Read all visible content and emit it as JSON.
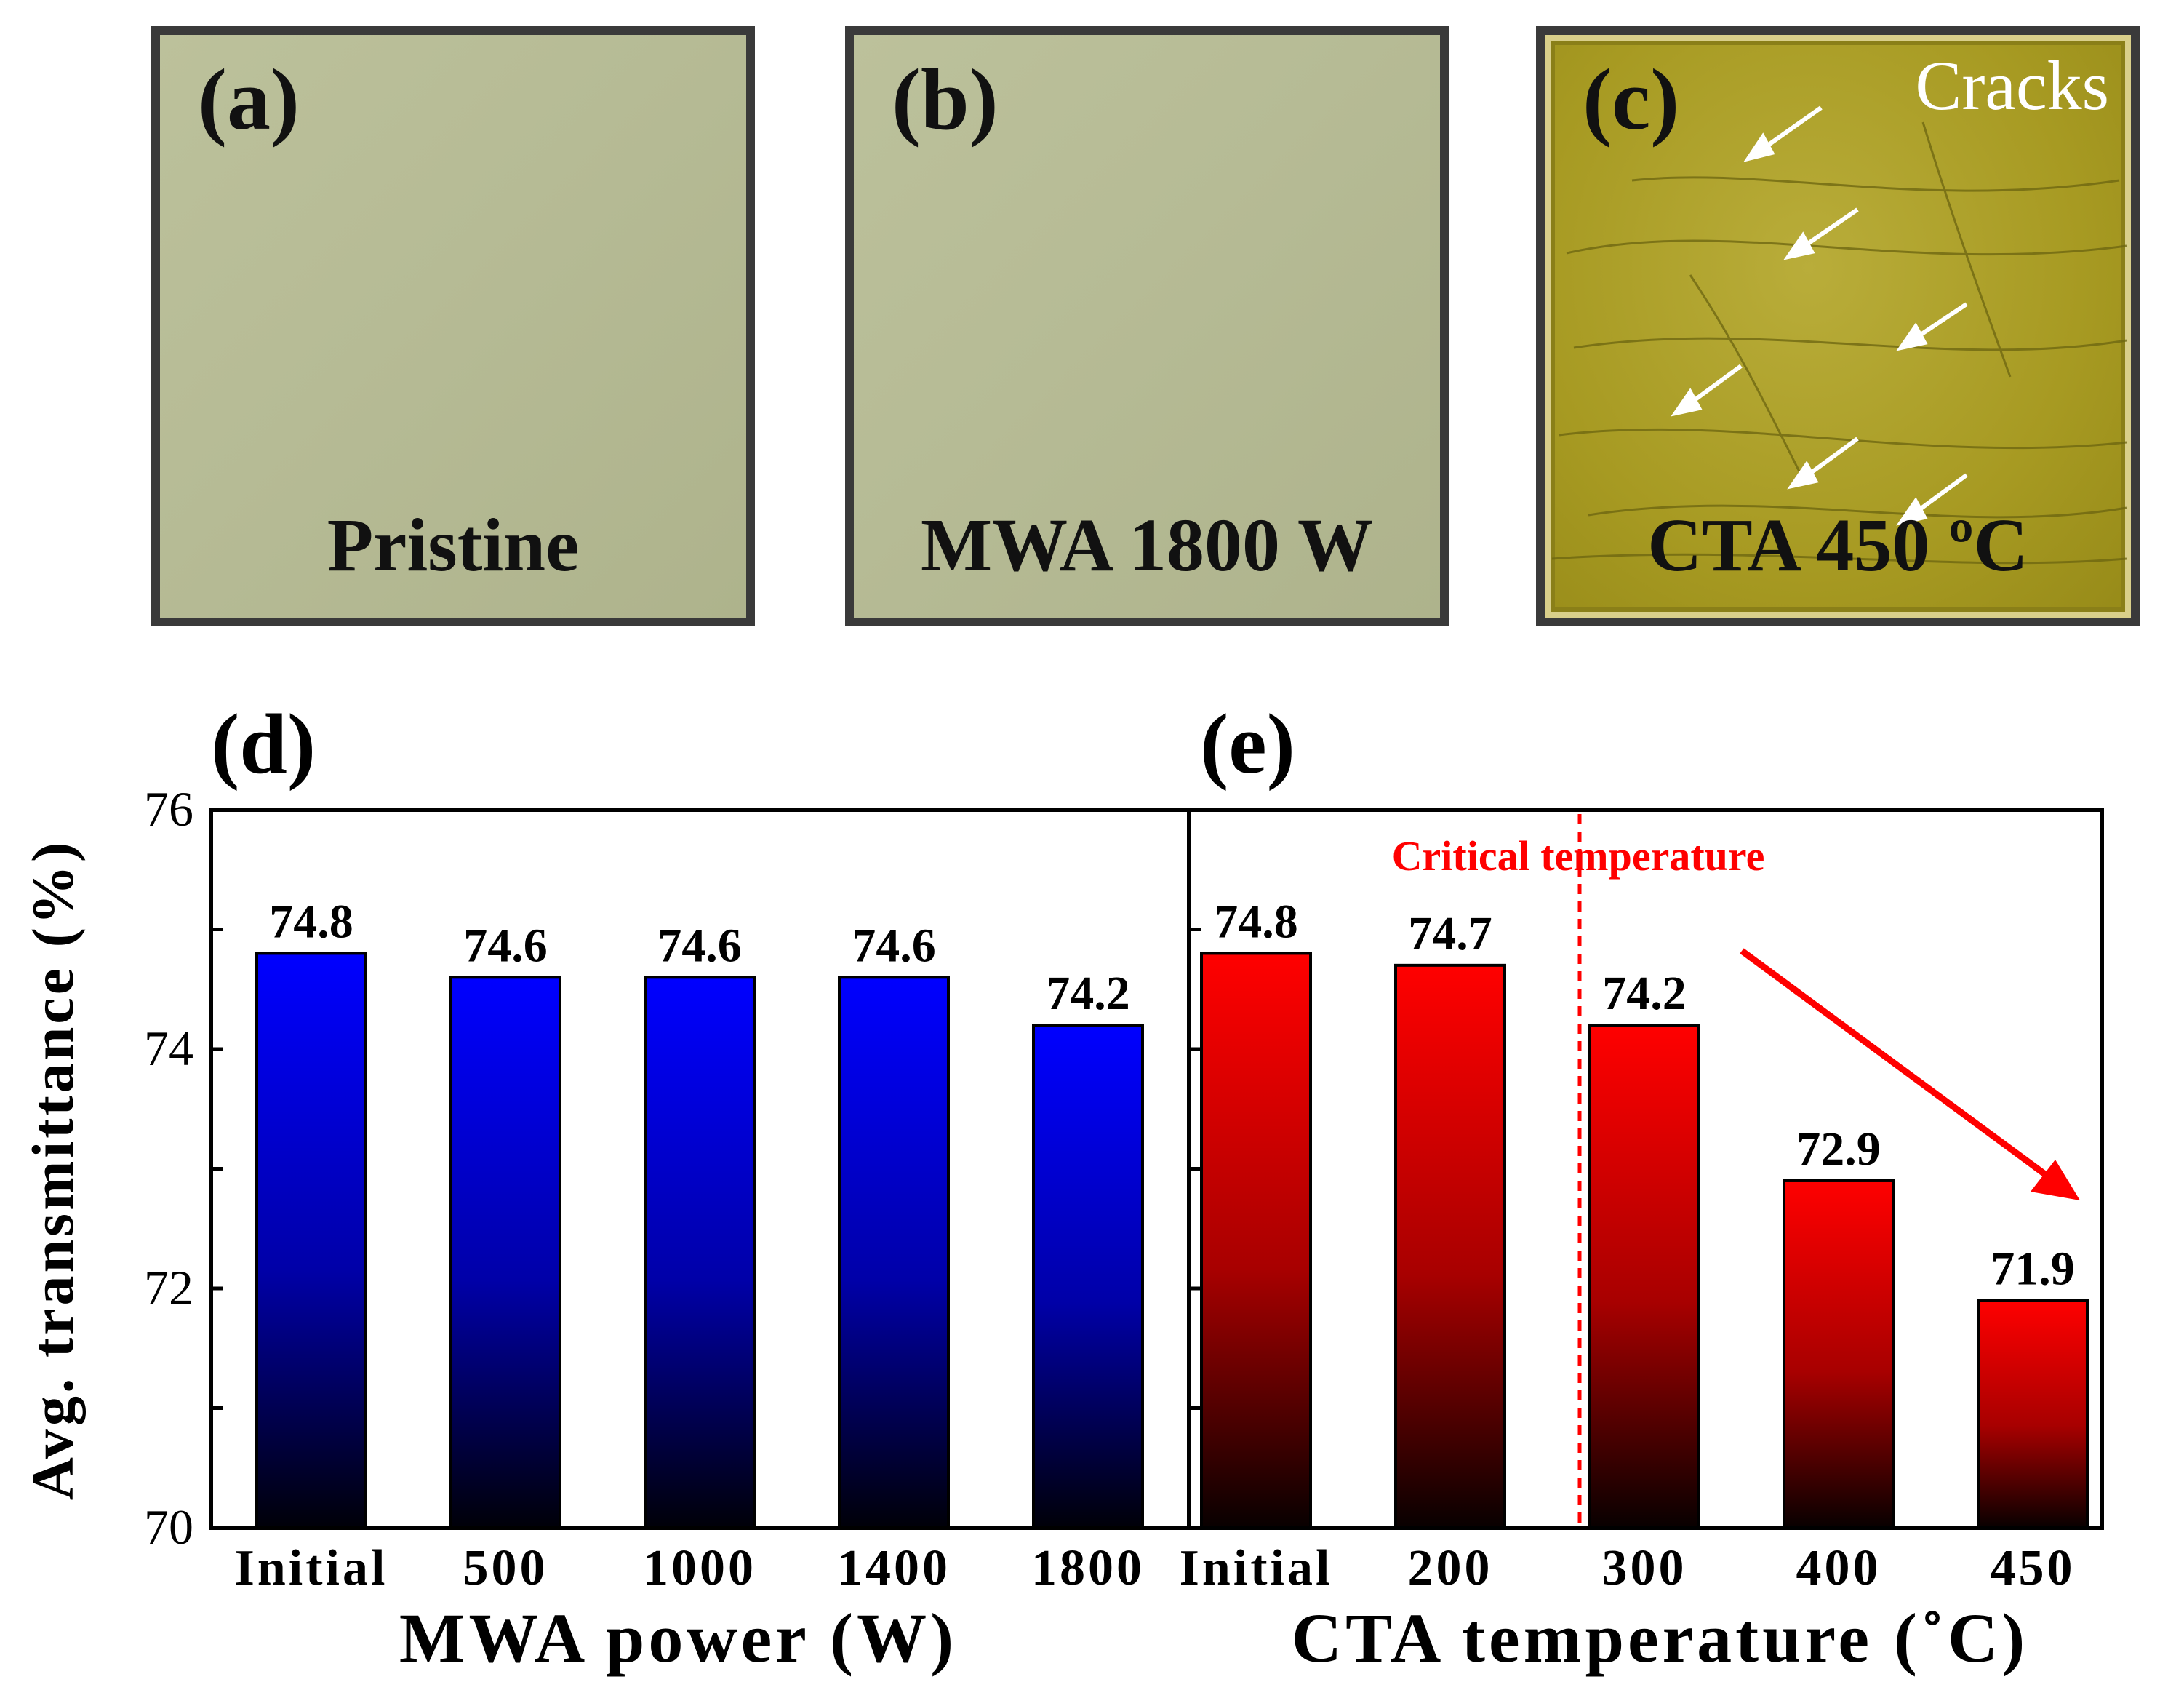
{
  "photos": [
    {
      "label": "(a)",
      "caption": "Pristine"
    },
    {
      "label": "(b)",
      "caption": "MWA 1800 W"
    },
    {
      "label": "(c)",
      "caption": "CTA 450 ºC",
      "annotation": "Cracks"
    }
  ],
  "colors": {
    "mwa_bar": "#0000ff",
    "cta_bar": "#ff0000",
    "critical": "#ff0000"
  },
  "chart_data": [
    {
      "type": "bar",
      "panel_label": "(d)",
      "categories": [
        "Initial",
        "500",
        "1000",
        "1400",
        "1800"
      ],
      "values": [
        74.8,
        74.6,
        74.6,
        74.6,
        74.2
      ],
      "data_labels": [
        "74.8",
        "74.6",
        "74.6",
        "74.6",
        "74.2"
      ],
      "xlabel": "MWA power (W)",
      "ylabel": "Avg. transmittance (%)",
      "ylim": [
        70,
        76
      ],
      "yticks": [
        70,
        72,
        74,
        76
      ]
    },
    {
      "type": "bar",
      "panel_label": "(e)",
      "categories": [
        "Initial",
        "200",
        "300",
        "400",
        "450"
      ],
      "values": [
        74.8,
        74.7,
        74.2,
        72.9,
        71.9
      ],
      "data_labels": [
        "74.8",
        "74.7",
        "74.2",
        "72.9",
        "71.9"
      ],
      "xlabel": "CTA temperature (˚C)",
      "ylim": [
        70,
        76
      ],
      "annotation": "Critical temperature"
    }
  ]
}
